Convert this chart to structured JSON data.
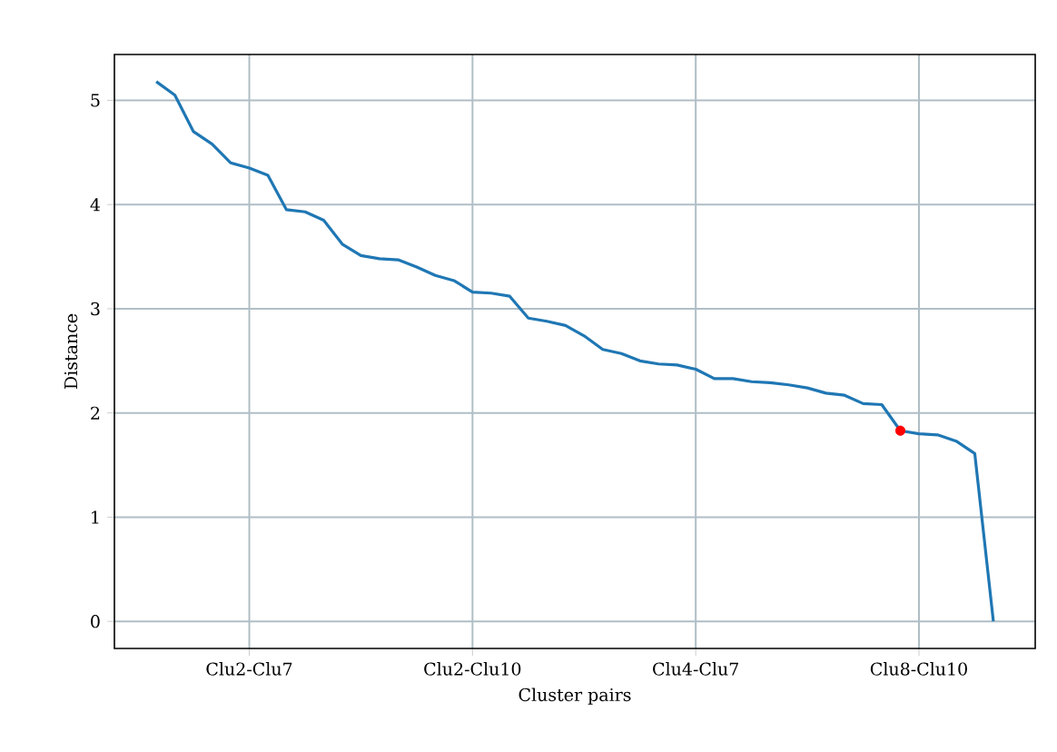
{
  "chart_data": {
    "type": "line",
    "xlabel": "Cluster pairs",
    "ylabel": "Distance",
    "categories": [
      null,
      null,
      null,
      null,
      null,
      "Clu2-Clu7",
      null,
      null,
      null,
      null,
      null,
      null,
      null,
      null,
      null,
      null,
      null,
      "Clu2-Clu10",
      null,
      null,
      null,
      null,
      null,
      null,
      null,
      null,
      null,
      null,
      null,
      "Clu4-Clu7",
      null,
      null,
      null,
      null,
      null,
      null,
      null,
      null,
      null,
      null,
      null,
      "Clu8-Clu10",
      null,
      null,
      null,
      null
    ],
    "series": [
      {
        "marker": "none",
        "color": "#1f77b4",
        "values": [
          5.18,
          5.05,
          4.7,
          4.58,
          4.4,
          4.35,
          4.28,
          3.95,
          3.93,
          3.85,
          3.62,
          3.51,
          3.48,
          3.47,
          3.4,
          3.32,
          3.27,
          3.16,
          3.15,
          3.12,
          2.91,
          2.88,
          2.84,
          2.74,
          2.61,
          2.57,
          2.5,
          2.47,
          2.46,
          2.42,
          2.33,
          2.33,
          2.3,
          2.29,
          2.27,
          2.24,
          2.19,
          2.17,
          2.09,
          2.08,
          1.83,
          1.8,
          1.79,
          1.73,
          1.61,
          0.0
        ]
      },
      {
        "type": "scatter",
        "marker": "circle",
        "color": "#ff0000",
        "values": [
          null,
          null,
          null,
          null,
          null,
          null,
          null,
          null,
          null,
          null,
          null,
          null,
          null,
          null,
          null,
          null,
          null,
          null,
          null,
          null,
          null,
          null,
          null,
          null,
          null,
          null,
          null,
          null,
          null,
          null,
          null,
          null,
          null,
          null,
          null,
          null,
          null,
          null,
          null,
          null,
          1.83,
          null,
          null,
          null,
          null,
          null
        ]
      }
    ],
    "ylim": [
      -0.26,
      5.44
    ],
    "yticks": [
      0,
      1,
      2,
      3,
      4,
      5
    ],
    "grid": true
  }
}
